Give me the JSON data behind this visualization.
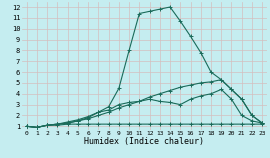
{
  "xlabel": "Humidex (Indice chaleur)",
  "bg_color": "#c5edf0",
  "grid_color": "#d4bebe",
  "line_color": "#1a6b5a",
  "xlim": [
    -0.5,
    23.5
  ],
  "ylim": [
    0.7,
    12.5
  ],
  "yticks": [
    1,
    2,
    3,
    4,
    5,
    6,
    7,
    8,
    9,
    10,
    11,
    12
  ],
  "xticks": [
    0,
    1,
    2,
    3,
    4,
    5,
    6,
    7,
    8,
    9,
    10,
    11,
    12,
    13,
    14,
    15,
    16,
    17,
    18,
    19,
    20,
    21,
    22,
    23
  ],
  "series": [
    {
      "x": [
        0,
        1,
        2,
        3,
        4,
        5,
        6,
        7,
        8,
        9,
        10,
        11,
        12,
        13,
        14,
        15,
        16,
        17,
        18,
        19,
        20,
        21,
        22,
        23
      ],
      "y": [
        1.0,
        0.9,
        1.1,
        1.1,
        1.2,
        1.2,
        1.2,
        1.2,
        1.2,
        1.2,
        1.2,
        1.2,
        1.2,
        1.2,
        1.2,
        1.2,
        1.2,
        1.2,
        1.2,
        1.2,
        1.2,
        1.2,
        1.2,
        1.2
      ]
    },
    {
      "x": [
        0,
        1,
        2,
        3,
        4,
        5,
        6,
        7,
        8,
        9,
        10,
        11,
        12,
        13,
        14,
        15,
        16,
        17,
        18,
        19,
        20,
        21,
        22,
        23
      ],
      "y": [
        1.0,
        0.9,
        1.1,
        1.2,
        1.3,
        1.5,
        1.7,
        2.0,
        2.3,
        2.7,
        3.0,
        3.3,
        3.7,
        4.0,
        4.3,
        4.6,
        4.8,
        5.0,
        5.1,
        5.3,
        4.4,
        3.5,
        2.0,
        1.3
      ]
    },
    {
      "x": [
        0,
        1,
        2,
        3,
        4,
        5,
        6,
        7,
        8,
        9,
        10,
        11,
        12,
        13,
        14,
        15,
        16,
        17,
        18,
        19,
        20,
        21,
        22,
        23
      ],
      "y": [
        1.0,
        0.9,
        1.1,
        1.2,
        1.4,
        1.6,
        1.9,
        2.3,
        2.8,
        4.5,
        8.0,
        11.4,
        11.6,
        11.8,
        12.0,
        10.7,
        9.3,
        7.8,
        6.0,
        5.3,
        4.4,
        3.5,
        2.0,
        1.3
      ]
    },
    {
      "x": [
        0,
        1,
        2,
        3,
        4,
        5,
        6,
        7,
        8,
        9,
        10,
        11,
        12,
        13,
        14,
        15,
        16,
        17,
        18,
        19,
        20,
        21,
        22,
        23
      ],
      "y": [
        1.0,
        0.9,
        1.1,
        1.2,
        1.3,
        1.5,
        1.8,
        2.3,
        2.5,
        3.0,
        3.2,
        3.3,
        3.5,
        3.3,
        3.2,
        3.0,
        3.5,
        3.8,
        4.0,
        4.4,
        3.5,
        2.0,
        1.5,
        1.3
      ]
    }
  ]
}
